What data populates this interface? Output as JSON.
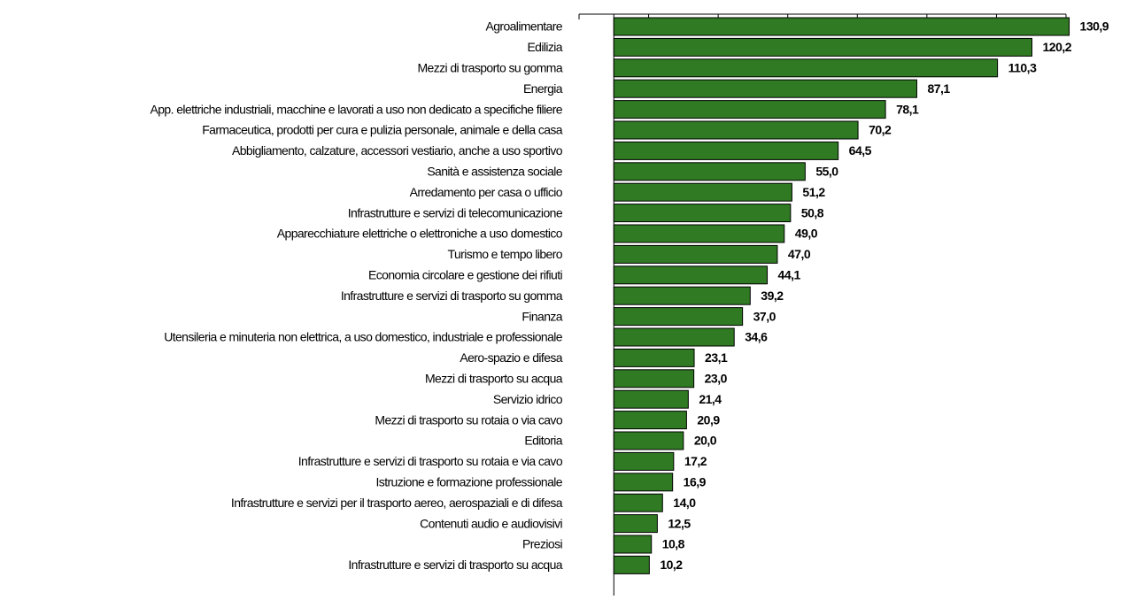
{
  "chart_data": {
    "type": "bar",
    "orientation": "horizontal",
    "color": "#2f7a22",
    "categories": [
      "Agroalimentare",
      "Edilizia",
      "Mezzi di trasporto su gomma",
      "Energia",
      "App. elettriche industriali, macchine e lavorati a uso non dedicato a specifiche filiere",
      "Farmaceutica, prodotti per cura e pulizia personale, animale e della casa",
      "Abbigliamento, calzature, accessori vestiario, anche a uso sportivo",
      "Sanità e assistenza sociale",
      "Arredamento per casa o ufficio",
      "Infrastrutture e servizi di telecomunicazione",
      "Apparecchiature elettriche o elettroniche a uso domestico",
      "Turismo e tempo libero",
      "Economia circolare e gestione dei rifiuti",
      "Infrastrutture e servizi di trasporto su gomma",
      "Finanza",
      "Utensileria e minuteria non elettrica, a uso domestico, industriale e professionale",
      "Aero-spazio e difesa",
      "Mezzi di trasporto su acqua",
      "Servizio idrico",
      "Mezzi di trasporto su rotaia o via cavo",
      "Editoria",
      "Infrastrutture e servizi di trasporto su rotaia e via cavo",
      "Istruzione e formazione professionale",
      "Infrastrutture e servizi per il trasporto aereo, aerospaziali e di difesa",
      "Contenuti audio e audiovisivi",
      "Preziosi",
      "Infrastrutture e servizi di trasporto su acqua"
    ],
    "values": [
      130.9,
      120.2,
      110.3,
      87.1,
      78.1,
      70.2,
      64.5,
      55.0,
      51.2,
      50.8,
      49.0,
      47.0,
      44.1,
      39.2,
      37.0,
      34.6,
      23.1,
      23.0,
      21.4,
      20.9,
      20.0,
      17.2,
      16.9,
      14.0,
      12.5,
      10.8,
      10.2
    ],
    "value_labels": [
      "130,9",
      "120,2",
      "110,3",
      "87,1",
      "78,1",
      "70,2",
      "64,5",
      "55,0",
      "51,2",
      "50,8",
      "49,0",
      "47,0",
      "44,1",
      "39,2",
      "37,0",
      "34,6",
      "23,1",
      "23,0",
      "21,4",
      "20,9",
      "20,0",
      "17,2",
      "16,9",
      "14,0",
      "12,5",
      "10,8",
      "10,2"
    ],
    "xlim": [
      -10,
      130
    ],
    "xticks": [
      -10,
      10,
      30,
      50,
      70,
      90,
      110,
      130
    ]
  }
}
